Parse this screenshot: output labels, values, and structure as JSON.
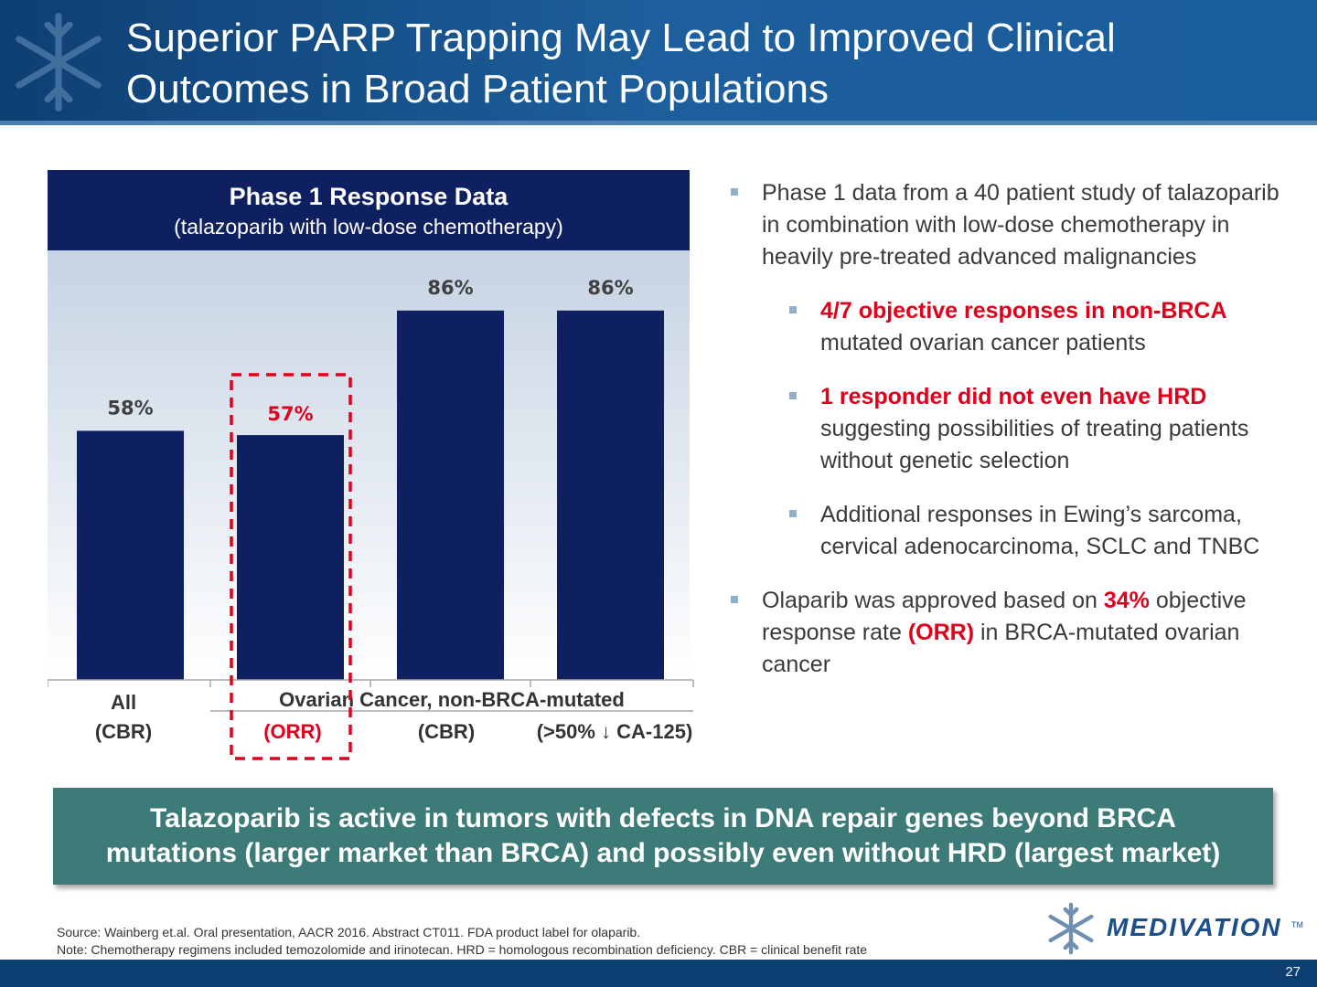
{
  "slide": {
    "title_line1": "Superior PARP Trapping May Lead to Improved Clinical",
    "title_line2": "Outcomes in Broad Patient Populations",
    "page_number": "27"
  },
  "chart_header": {
    "title": "Phase 1 Response Data",
    "subtitle": "(talazoparib with low-dose chemotherapy)"
  },
  "chart_data": {
    "type": "bar",
    "categories": [
      "All (CBR)",
      "(ORR)",
      "(CBR)",
      "(>50% CA-125)"
    ],
    "values": [
      58,
      57,
      86,
      86
    ],
    "value_labels": [
      "58%",
      "57%",
      "86%",
      "86%"
    ],
    "group_label": "Ovarian Cancer, non-BRCA-mutated",
    "category_line1": [
      "All",
      "",
      "",
      ""
    ],
    "category_line2": [
      "(CBR)",
      "(ORR)",
      "(CBR)",
      "(>50% ↓ CA-125)"
    ],
    "highlight_index": 1,
    "ylim": [
      0,
      100
    ],
    "grid": false,
    "colors": {
      "bar": "#0f2060",
      "highlight": "#e0001b",
      "label": "#404040"
    }
  },
  "bullets": [
    {
      "level": 1,
      "parts": [
        {
          "t": "Phase 1 data from a 40 patient study of talazoparib in combination with low-dose chemotherapy in heavily pre-treated advanced malignancies",
          "red": false
        }
      ]
    },
    {
      "level": 2,
      "parts": [
        {
          "t": "4/7 objective responses in non-BRCA",
          "red": true
        },
        {
          "t": " mutated ovarian cancer patients",
          "red": false
        }
      ]
    },
    {
      "level": 2,
      "parts": [
        {
          "t": "1 responder did not even have HRD",
          "red": true
        },
        {
          "t": " suggesting possibilities of treating patients without genetic selection",
          "red": false
        }
      ]
    },
    {
      "level": 2,
      "parts": [
        {
          "t": "Additional responses in Ewing’s sarcoma, cervical adenocarcinoma, SCLC and TNBC",
          "red": false
        }
      ]
    },
    {
      "level": 1,
      "parts": [
        {
          "t": "Olaparib was approved based on ",
          "red": false
        },
        {
          "t": "34%",
          "red": true
        },
        {
          "t": " objective response rate ",
          "red": false
        },
        {
          "t": "(ORR)",
          "red": true
        },
        {
          "t": " in BRCA-mutated ovarian cancer",
          "red": false
        }
      ]
    }
  ],
  "callout": {
    "line1": "Talazoparib is active in tumors with defects in DNA repair genes beyond BRCA",
    "line2": "mutations (larger market than BRCA) and possibly even without HRD (largest market)"
  },
  "footnote": {
    "source": "Source:  Wainberg et.al. Oral presentation, AACR 2016. Abstract CT011. FDA product label for olaparib.",
    "note": "Note:  Chemotherapy regimens included temozolomide and irinotecan.  HRD = homologous recombination deficiency.  CBR = clinical benefit rate"
  },
  "brand": {
    "name": "MEDIVATION",
    "tm": "TM"
  }
}
